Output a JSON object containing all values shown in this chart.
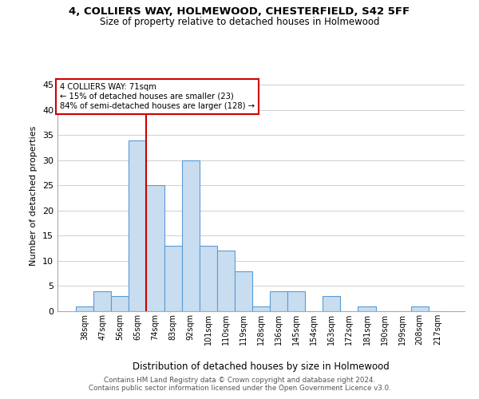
{
  "title1": "4, COLLIERS WAY, HOLMEWOOD, CHESTERFIELD, S42 5FF",
  "title2": "Size of property relative to detached houses in Holmewood",
  "xlabel": "Distribution of detached houses by size in Holmewood",
  "ylabel": "Number of detached properties",
  "categories": [
    "38sqm",
    "47sqm",
    "56sqm",
    "65sqm",
    "74sqm",
    "83sqm",
    "92sqm",
    "101sqm",
    "110sqm",
    "119sqm",
    "128sqm",
    "136sqm",
    "145sqm",
    "154sqm",
    "163sqm",
    "172sqm",
    "181sqm",
    "190sqm",
    "199sqm",
    "208sqm",
    "217sqm"
  ],
  "values": [
    1,
    4,
    3,
    34,
    25,
    13,
    30,
    13,
    12,
    8,
    1,
    4,
    4,
    0,
    3,
    0,
    1,
    0,
    0,
    1,
    0
  ],
  "bar_color": "#c9ddf0",
  "bar_edge_color": "#5b9bd5",
  "ref_line_x": 3.5,
  "ref_line_label": "4 COLLIERS WAY: 71sqm",
  "ref_line_note1": "← 15% of detached houses are smaller (23)",
  "ref_line_note2": "84% of semi-detached houses are larger (128) →",
  "ref_line_color": "#cc0000",
  "annotation_box_color": "#ffffff",
  "annotation_box_edge": "#cc0000",
  "ylim": [
    0,
    46
  ],
  "yticks": [
    0,
    5,
    10,
    15,
    20,
    25,
    30,
    35,
    40,
    45
  ],
  "footer1": "Contains HM Land Registry data © Crown copyright and database right 2024.",
  "footer2": "Contains public sector information licensed under the Open Government Licence v3.0.",
  "bg_color": "#ffffff",
  "grid_color": "#d0d0d0"
}
